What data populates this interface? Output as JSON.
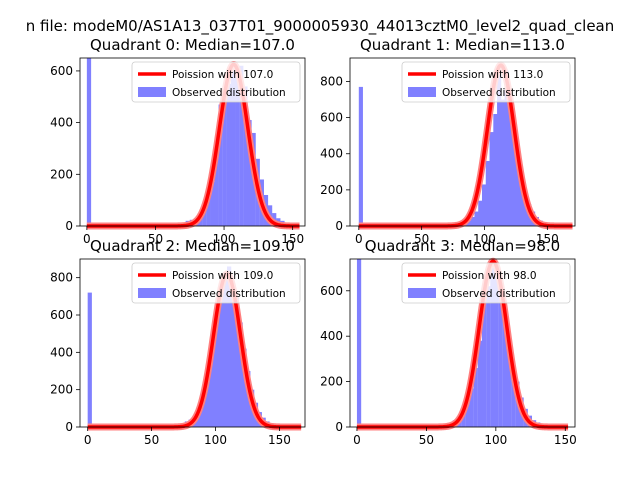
{
  "figure_title": "n file: modeM0/AS1A13_037T01_9000005930_44013cztM0_level2_quad_clean",
  "colors": {
    "bar": "#8080ff",
    "fit": "#ff0000",
    "fit_halo": "#ff8080"
  },
  "chart_data": [
    {
      "type": "bar",
      "title": "Quadrant 0: Median=107.0",
      "legend": {
        "position": "top-right",
        "fit_label": "Poission with 107.0",
        "obs_label": "Observed distribution"
      },
      "xlim": [
        -5,
        159
      ],
      "ylim": [
        0,
        650
      ],
      "xticks": [
        0,
        50,
        100,
        150
      ],
      "yticks": [
        0,
        200,
        400,
        600
      ],
      "bin_width": 3.1,
      "bins": [
        [
          0,
          650
        ],
        [
          18,
          6
        ],
        [
          34,
          4
        ],
        [
          66,
          10
        ],
        [
          69,
          8
        ],
        [
          72,
          20
        ],
        [
          75,
          24
        ],
        [
          78,
          30
        ],
        [
          81,
          50
        ],
        [
          84,
          60
        ],
        [
          87,
          110
        ],
        [
          90,
          170
        ],
        [
          93,
          280
        ],
        [
          96,
          470
        ],
        [
          99,
          540
        ],
        [
          102,
          550
        ],
        [
          105,
          600
        ],
        [
          108,
          610
        ],
        [
          111,
          620
        ],
        [
          114,
          540
        ],
        [
          117,
          410
        ],
        [
          120,
          360
        ],
        [
          123,
          260
        ],
        [
          126,
          180
        ],
        [
          129,
          120
        ],
        [
          132,
          80
        ],
        [
          135,
          50
        ],
        [
          138,
          30
        ],
        [
          141,
          20
        ],
        [
          144,
          10
        ],
        [
          147,
          6
        ],
        [
          150,
          4
        ]
      ],
      "mu": 107.0,
      "fit_peak": 625,
      "fit_range": [
        0,
        155
      ]
    },
    {
      "type": "bar",
      "title": "Quadrant 1: Median=113.0",
      "legend": {
        "position": "top-right",
        "fit_label": "Poission with 113.0",
        "obs_label": "Observed distribution"
      },
      "xlim": [
        -7,
        172
      ],
      "ylim": [
        0,
        930
      ],
      "xticks": [
        0,
        50,
        100,
        150
      ],
      "yticks": [
        0,
        200,
        400,
        600,
        800
      ],
      "bin_width": 3.3,
      "bins": [
        [
          0,
          770
        ],
        [
          77,
          8
        ],
        [
          80,
          14
        ],
        [
          83,
          20
        ],
        [
          86,
          30
        ],
        [
          89,
          50
        ],
        [
          92,
          80
        ],
        [
          95,
          140
        ],
        [
          98,
          230
        ],
        [
          101,
          360
        ],
        [
          104,
          520
        ],
        [
          107,
          620
        ],
        [
          110,
          840
        ],
        [
          113,
          700
        ],
        [
          116,
          860
        ],
        [
          119,
          700
        ],
        [
          122,
          560
        ],
        [
          125,
          420
        ],
        [
          128,
          300
        ],
        [
          131,
          190
        ],
        [
          134,
          120
        ],
        [
          137,
          80
        ],
        [
          140,
          50
        ],
        [
          143,
          30
        ],
        [
          146,
          20
        ],
        [
          149,
          10
        ],
        [
          152,
          6
        ]
      ],
      "mu": 113.0,
      "fit_peak": 890,
      "fit_range": [
        0,
        170
      ]
    },
    {
      "type": "bar",
      "title": "Quadrant 2: Median=109.0",
      "legend": {
        "position": "top-right",
        "fit_label": "Poission with 109.0",
        "obs_label": "Observed distribution"
      },
      "xlim": [
        -6,
        170
      ],
      "ylim": [
        0,
        900
      ],
      "xticks": [
        0,
        50,
        100,
        150
      ],
      "yticks": [
        0,
        200,
        400,
        600,
        800
      ],
      "bin_width": 3.3,
      "bins": [
        [
          0,
          720
        ],
        [
          76,
          30
        ],
        [
          79,
          40
        ],
        [
          82,
          60
        ],
        [
          85,
          100
        ],
        [
          88,
          160
        ],
        [
          91,
          260
        ],
        [
          94,
          380
        ],
        [
          97,
          500
        ],
        [
          100,
          620
        ],
        [
          103,
          700
        ],
        [
          106,
          800
        ],
        [
          109,
          860
        ],
        [
          112,
          760
        ],
        [
          115,
          700
        ],
        [
          118,
          560
        ],
        [
          121,
          420
        ],
        [
          124,
          300
        ],
        [
          127,
          200
        ],
        [
          130,
          130
        ],
        [
          133,
          80
        ],
        [
          136,
          50
        ],
        [
          139,
          30
        ],
        [
          142,
          20
        ],
        [
          145,
          12
        ],
        [
          148,
          8
        ]
      ],
      "mu": 109.0,
      "fit_peak": 820,
      "fit_range": [
        0,
        167
      ]
    },
    {
      "type": "bar",
      "title": "Quadrant 3: Median=98.0",
      "legend": {
        "position": "top-right",
        "fit_label": "Poission with 98.0",
        "obs_label": "Observed distribution"
      },
      "xlim": [
        -5,
        157
      ],
      "ylim": [
        0,
        740
      ],
      "xticks": [
        0,
        50,
        100,
        150
      ],
      "yticks": [
        0,
        200,
        400,
        600
      ],
      "bin_width": 3.05,
      "bins": [
        [
          0,
          740
        ],
        [
          66,
          20
        ],
        [
          69,
          30
        ],
        [
          72,
          40
        ],
        [
          75,
          60
        ],
        [
          78,
          100
        ],
        [
          81,
          170
        ],
        [
          84,
          260
        ],
        [
          87,
          380
        ],
        [
          90,
          560
        ],
        [
          93,
          620
        ],
        [
          96,
          700
        ],
        [
          99,
          720
        ],
        [
          102,
          600
        ],
        [
          105,
          520
        ],
        [
          108,
          400
        ],
        [
          111,
          280
        ],
        [
          114,
          200
        ],
        [
          117,
          130
        ],
        [
          120,
          80
        ],
        [
          123,
          50
        ],
        [
          126,
          30
        ],
        [
          129,
          20
        ],
        [
          132,
          10
        ],
        [
          135,
          6
        ]
      ],
      "mu": 98.0,
      "fit_peak": 730,
      "fit_range": [
        0,
        152
      ]
    }
  ]
}
